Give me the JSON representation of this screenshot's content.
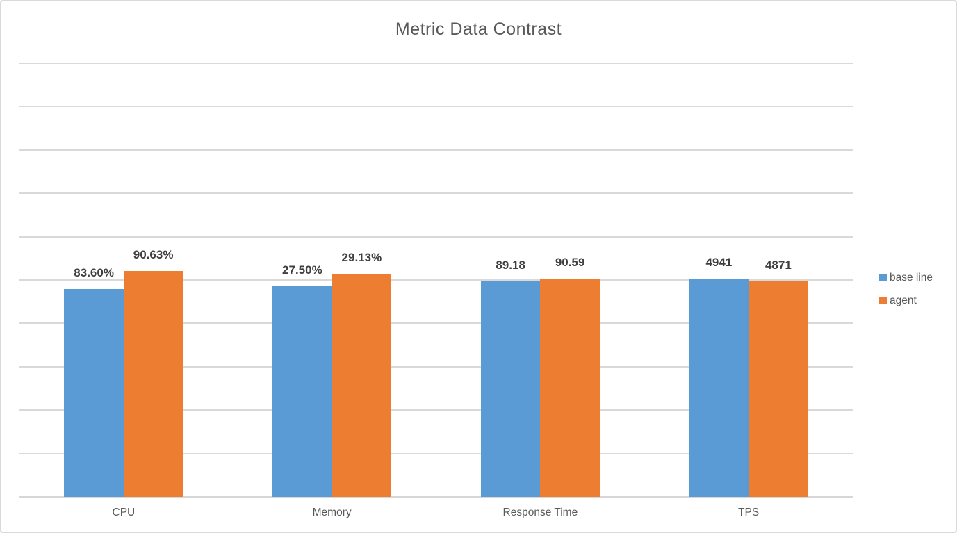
{
  "chart_data": {
    "type": "bar",
    "title": "Metric Data Contrast",
    "categories": [
      "CPU",
      "Memory",
      "Response Time",
      "TPS"
    ],
    "series": [
      {
        "name": "base line",
        "color": "#5B9BD5",
        "values": [
          83.6,
          27.5,
          89.18,
          4941
        ],
        "labels": [
          "83.60%",
          "27.50%",
          "89.18",
          "4941"
        ]
      },
      {
        "name": "agent",
        "color": "#ED7D31",
        "values": [
          90.63,
          29.13,
          90.59,
          4871
        ],
        "labels": [
          "90.63%",
          "29.13%",
          "90.59",
          "4871"
        ]
      }
    ],
    "legend_position": "right",
    "legend_entries": [
      "base line",
      "agent"
    ],
    "y_axis_tick_labels_visible": false,
    "gridlines_count": 11,
    "grid_color": "#D9D9D9",
    "data_label_color": "#3F3F3F",
    "title_color": "#595959",
    "axis_text_color": "#595959",
    "bar_scaling": "each bar height is its value's share of the category pair sum"
  }
}
